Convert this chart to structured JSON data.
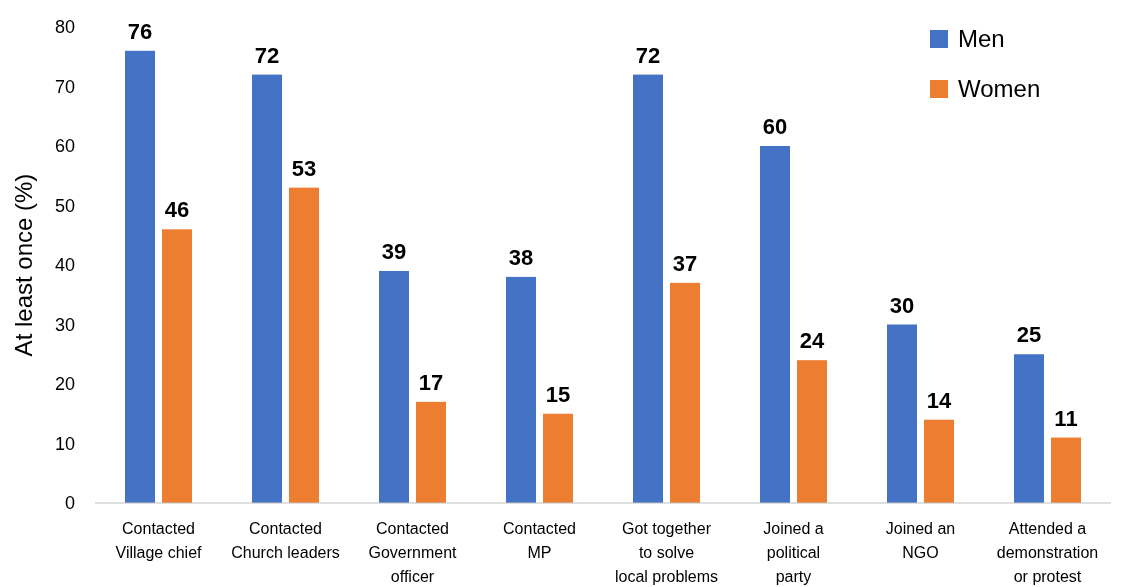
{
  "chart_data": {
    "type": "bar",
    "ylabel": "At least once (%)",
    "categories": [
      "Contacted\nVillage chief",
      "Contacted\nChurch leaders",
      "Contacted\nGovernment\nofficer",
      "Contacted\nMP",
      "Got together\nto solve\nlocal problems",
      "Joined a\npolitical\nparty",
      "Joined an\nNGO",
      "Attended a\ndemonstration\nor protest"
    ],
    "series": [
      {
        "name": "Men",
        "color": "#4472c4",
        "values": [
          76,
          72,
          39,
          38,
          72,
          60,
          30,
          25
        ]
      },
      {
        "name": "Women",
        "color": "#ed7d31",
        "values": [
          46,
          53,
          17,
          15,
          37,
          24,
          14,
          11
        ]
      }
    ],
    "ylim": [
      0,
      80
    ],
    "yticks": [
      0,
      10,
      20,
      30,
      40,
      50,
      60,
      70,
      80
    ],
    "data_labels": true,
    "legend": "top right",
    "grid": false
  }
}
